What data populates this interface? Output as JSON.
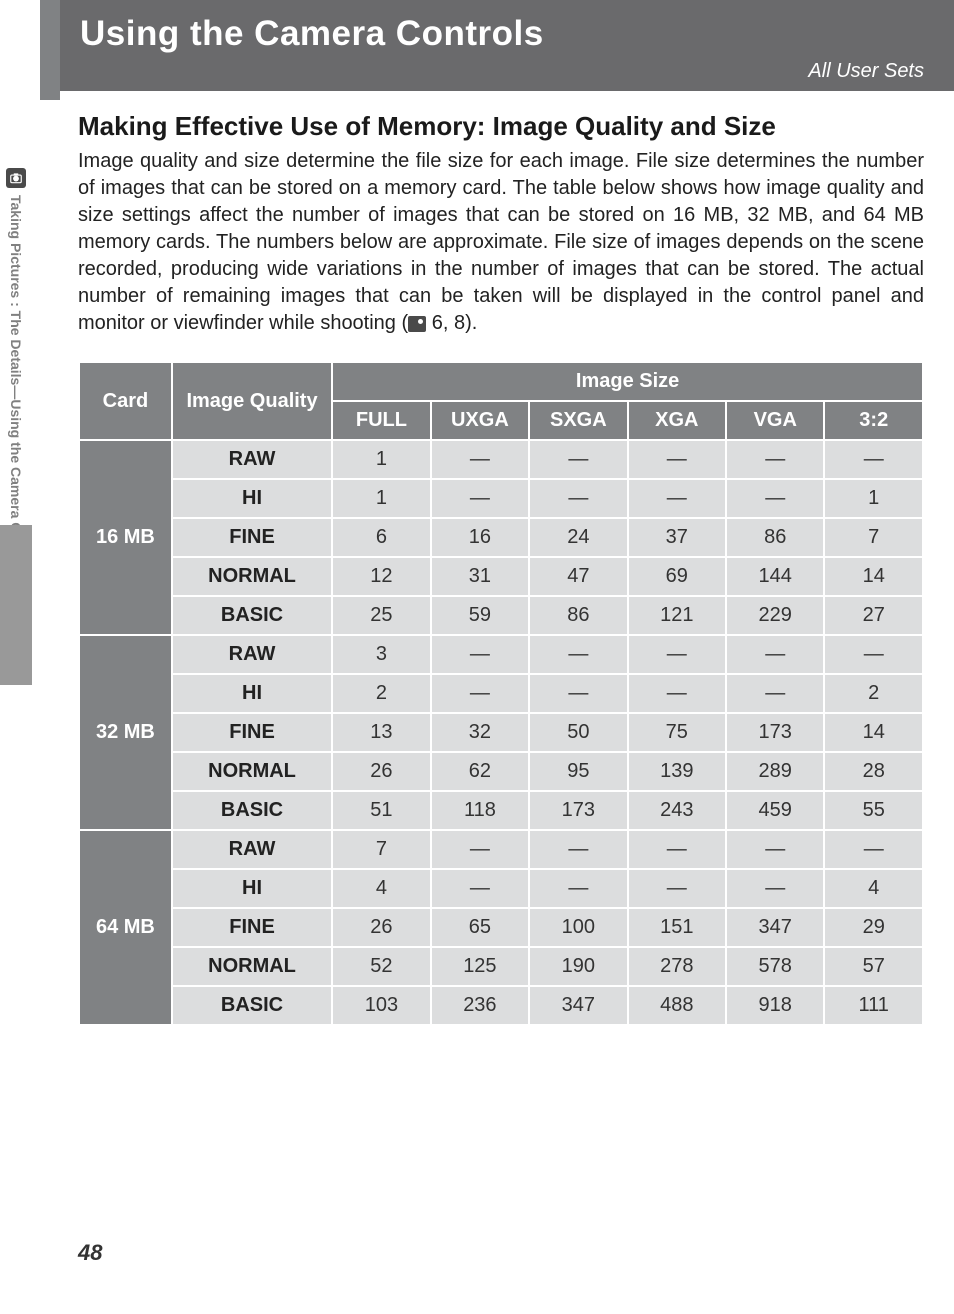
{
  "header": {
    "title": "Using the Camera Controls",
    "subtitle": "All User Sets"
  },
  "sidebar": {
    "text": "Taking Pictures : The Details—Using the Camera Controls (All User Sets)"
  },
  "section": {
    "title": "Making Effective Use of Memory: Image Quality and Size",
    "body_before_icon": "Image quality and size determine the file size for each image. File size determines the number of images that can be stored on a memory card. The table below shows how image quality and size settings affect the number of images that can be stored on 16 MB, 32 MB, and 64 MB memory cards. The numbers below are approximate. File size of images depends on the scene recorded, producing wide variations in the number of images that can be stored.  The actual number of remaining images that can be taken will be displayed in the control panel and monitor or viewfinder while shooting (",
    "body_after_icon": " 6, 8)."
  },
  "table": {
    "headers": {
      "card": "Card",
      "quality": "Image Quality",
      "size_group": "Image Size",
      "sizes": [
        "FULL",
        "UXGA",
        "SXGA",
        "XGA",
        "VGA",
        "3:2"
      ]
    },
    "qualities": [
      "RAW",
      "HI",
      "FINE",
      "NORMAL",
      "BASIC"
    ],
    "cards": [
      {
        "label": "16 MB",
        "rows": [
          [
            "1",
            "—",
            "—",
            "—",
            "—",
            "—"
          ],
          [
            "1",
            "—",
            "—",
            "—",
            "—",
            "1"
          ],
          [
            "6",
            "16",
            "24",
            "37",
            "86",
            "7"
          ],
          [
            "12",
            "31",
            "47",
            "69",
            "144",
            "14"
          ],
          [
            "25",
            "59",
            "86",
            "121",
            "229",
            "27"
          ]
        ]
      },
      {
        "label": "32 MB",
        "rows": [
          [
            "3",
            "—",
            "—",
            "—",
            "—",
            "—"
          ],
          [
            "2",
            "—",
            "—",
            "—",
            "—",
            "2"
          ],
          [
            "13",
            "32",
            "50",
            "75",
            "173",
            "14"
          ],
          [
            "26",
            "62",
            "95",
            "139",
            "289",
            "28"
          ],
          [
            "51",
            "118",
            "173",
            "243",
            "459",
            "55"
          ]
        ]
      },
      {
        "label": "64 MB",
        "rows": [
          [
            "7",
            "—",
            "—",
            "—",
            "—",
            "—"
          ],
          [
            "4",
            "—",
            "—",
            "—",
            "—",
            "4"
          ],
          [
            "26",
            "65",
            "100",
            "151",
            "347",
            "29"
          ],
          [
            "52",
            "125",
            "190",
            "278",
            "578",
            "57"
          ],
          [
            "103",
            "236",
            "347",
            "488",
            "918",
            "111"
          ]
        ]
      }
    ]
  },
  "page_number": "48",
  "colors": {
    "header_bg": "#6a6a6c",
    "table_header_bg": "#808284",
    "cell_bg": "#dcddde",
    "sidebar_gray": "#999999"
  }
}
